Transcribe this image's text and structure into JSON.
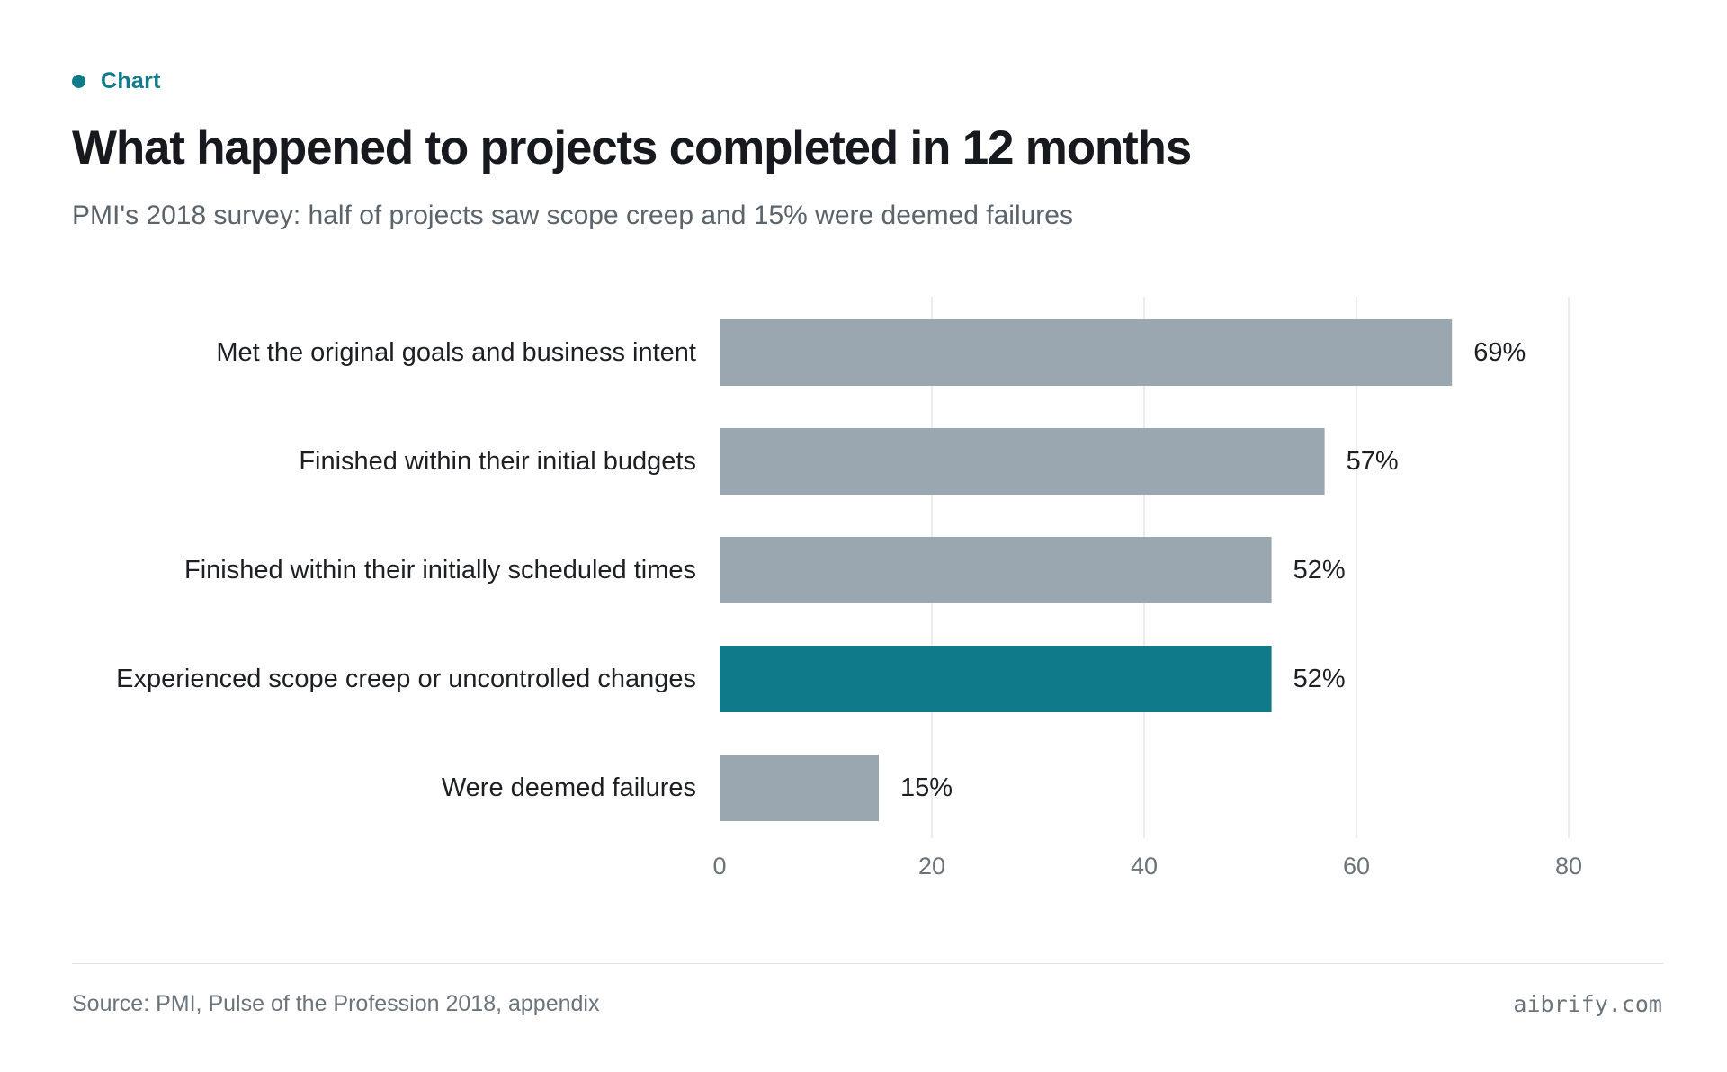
{
  "eyebrow": {
    "label": "Chart",
    "dot_color": "#0e7a8a"
  },
  "header": {
    "title": "What happened to projects completed in 12 months",
    "subtitle": "PMI's 2018 survey: half of projects saw scope creep and 15% were deemed failures"
  },
  "chart_data": {
    "type": "bar",
    "orientation": "horizontal",
    "categories": [
      "Met the original goals and business intent",
      "Finished within their initial budgets",
      "Finished within their initially scheduled times",
      "Experienced scope creep or uncontrolled changes",
      "Were deemed failures"
    ],
    "values": [
      69,
      57,
      52,
      52,
      15
    ],
    "value_labels": [
      "69%",
      "57%",
      "52%",
      "52%",
      "15%"
    ],
    "highlight_index": 3,
    "colors": {
      "default": "#9aa7b0",
      "highlight": "#0e7a8a",
      "grid": "#e3e6e9"
    },
    "xlim": [
      0,
      80
    ],
    "xticks": [
      0,
      20,
      40,
      60,
      80
    ],
    "grid": true,
    "title": "",
    "xlabel": "",
    "ylabel": ""
  },
  "footer": {
    "source": "Source: PMI, Pulse of the Profession 2018, appendix",
    "brand": "aibrify.com"
  }
}
